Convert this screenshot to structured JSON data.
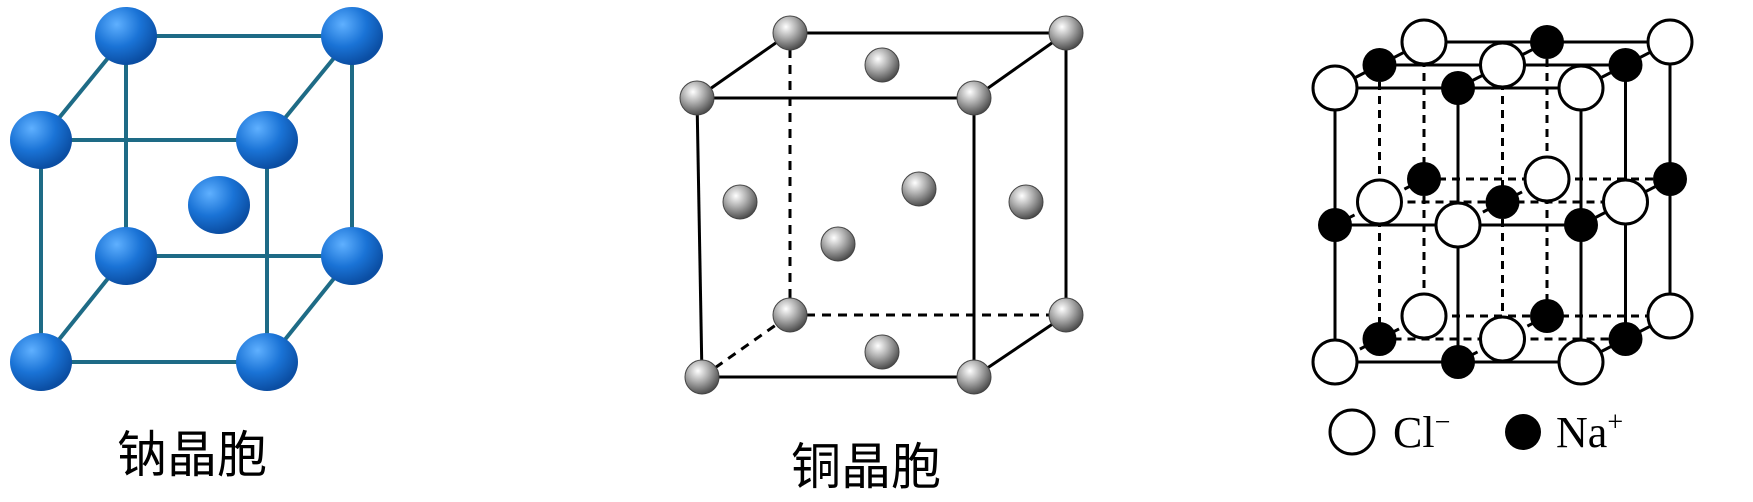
{
  "figures": [
    {
      "id": "sodium",
      "label": "钠晶胞",
      "atom_color": "#1a73d6",
      "line_color": "#1e6b86"
    },
    {
      "id": "copper",
      "label": "铜晶胞",
      "atom_color": "#9a9a9a",
      "line_color": "#000000"
    },
    {
      "id": "nacl",
      "label": "",
      "line_color": "#000000"
    }
  ],
  "legend": {
    "cl": {
      "text": "Cl",
      "sup": "−",
      "color": "#ffffff"
    },
    "na": {
      "text": "Na",
      "sup": "+",
      "color": "#000000"
    }
  }
}
